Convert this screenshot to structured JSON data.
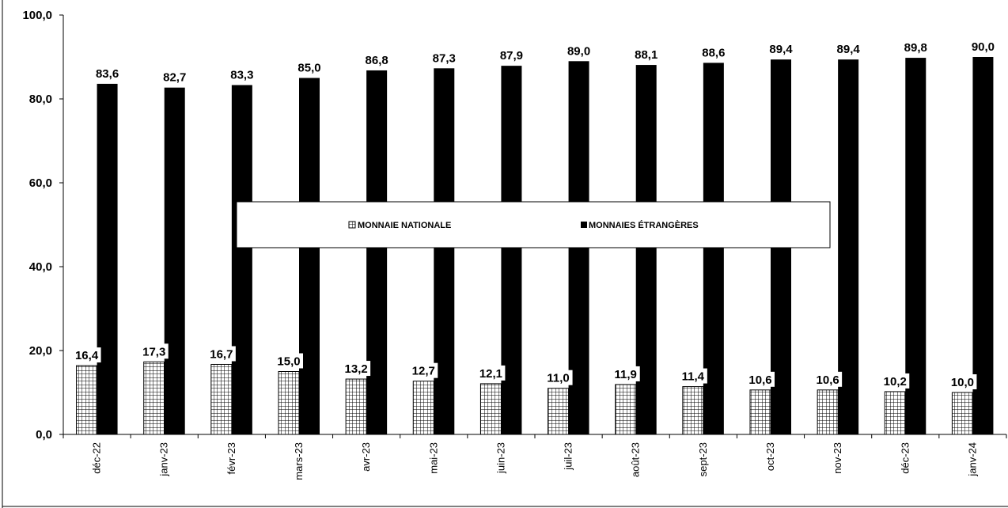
{
  "chart_data": {
    "type": "bar",
    "title": "",
    "xlabel": "",
    "ylabel": "",
    "ylim": [
      0,
      100
    ],
    "y_ticks": [
      "0,0",
      "20,0",
      "40,0",
      "60,0",
      "80,0",
      "100,0"
    ],
    "categories": [
      "déc-22",
      "janv-23",
      "févr-23",
      "mars-23",
      "avr-23",
      "mai-23",
      "juin-23",
      "juil-23",
      "août-23",
      "sept-23",
      "oct-23",
      "nov-23",
      "déc-23",
      "janv-24"
    ],
    "series": [
      {
        "name": "MONNAIE NATIONALE",
        "values": [
          16.4,
          17.3,
          16.7,
          15.0,
          13.2,
          12.7,
          12.1,
          11.0,
          11.9,
          11.4,
          10.6,
          10.6,
          10.2,
          10.0
        ],
        "labels": [
          "16,4",
          "17,3",
          "16,7",
          "15,0",
          "13,2",
          "12,7",
          "12,1",
          "11,0",
          "11,9",
          "11,4",
          "10,6",
          "10,6",
          "10,2",
          "10,0"
        ],
        "pattern": "grid",
        "color": "#000000"
      },
      {
        "name": "MONNAIES ÉTRANGÈRES",
        "values": [
          83.6,
          82.7,
          83.3,
          85.0,
          86.8,
          87.3,
          87.9,
          89.0,
          88.1,
          88.6,
          89.4,
          89.4,
          89.8,
          90.0
        ],
        "labels": [
          "83,6",
          "82,7",
          "83,3",
          "85,0",
          "86,8",
          "87,3",
          "87,9",
          "89,0",
          "88,1",
          "88,6",
          "89,4",
          "89,4",
          "89,8",
          "90,0"
        ],
        "pattern": "solid",
        "color": "#000000"
      }
    ],
    "grid": false,
    "legend": "center"
  }
}
